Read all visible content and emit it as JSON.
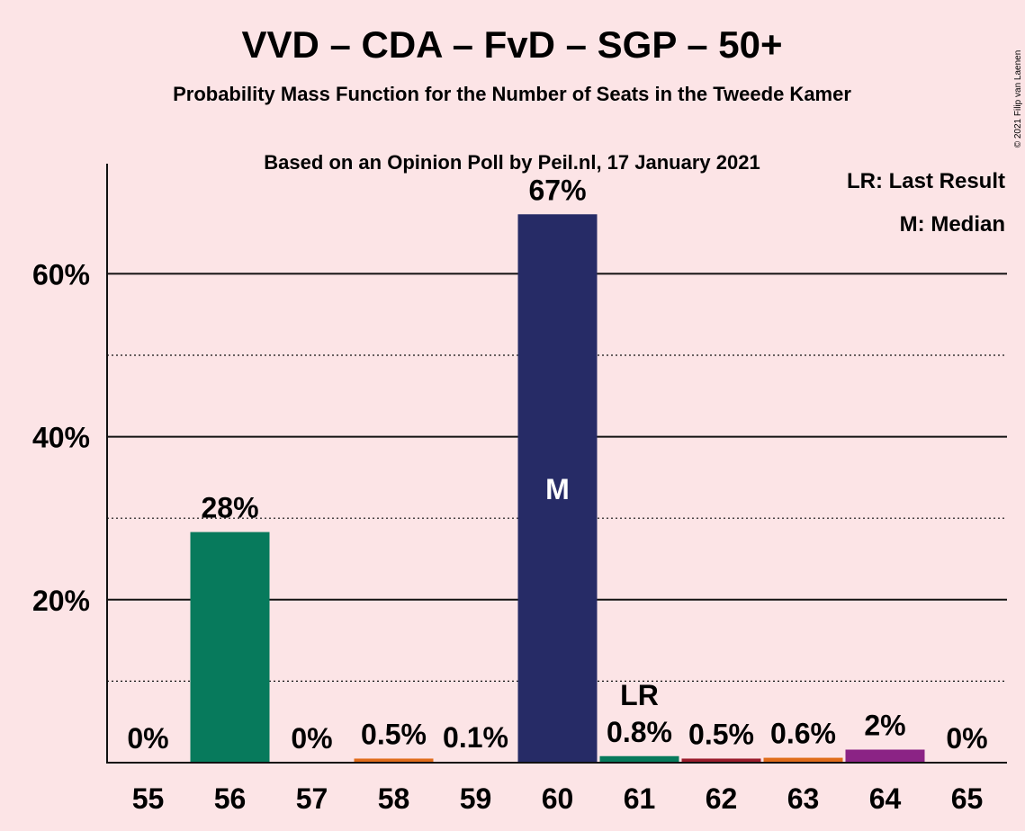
{
  "chart_data": {
    "type": "bar",
    "title": "VVD – CDA – FvD – SGP – 50+",
    "subtitle": "Probability Mass Function for the Number of Seats in the Tweede Kamer",
    "source_line": "Based on an Opinion Poll by Peil.nl, 17 January 2021",
    "copyright": "© 2021 Filip van Laenen",
    "legend": [
      "LR: Last Result",
      "M: Median"
    ],
    "categories": [
      "55",
      "56",
      "57",
      "58",
      "59",
      "60",
      "61",
      "62",
      "63",
      "64",
      "65"
    ],
    "values": [
      0,
      28.3,
      0,
      0.5,
      0.1,
      67.3,
      0.8,
      0.5,
      0.6,
      1.6,
      0
    ],
    "data_labels": [
      "0%",
      "28%",
      "0%",
      "0.5%",
      "0.1%",
      "67%",
      "0.8%",
      "0.5%",
      "0.6%",
      "2%",
      "0%"
    ],
    "bar_colors": [
      "#077a5c",
      "#077a5c",
      "#077a5c",
      "#e06c1a",
      "#9b1c2c",
      "#262b66",
      "#077a5c",
      "#9b1c2c",
      "#e06c1a",
      "#8b2385",
      "#8b2385"
    ],
    "median_category": "60",
    "median_marker": "M",
    "last_result_category": "61",
    "last_result_marker": "LR",
    "yticks": [
      20,
      40,
      60
    ],
    "ytick_labels": [
      "20%",
      "40%",
      "60%"
    ],
    "minor_gridlines": [
      10,
      30,
      50
    ],
    "ylim": [
      0,
      73
    ],
    "grid": true,
    "legend_position": "top-right"
  }
}
